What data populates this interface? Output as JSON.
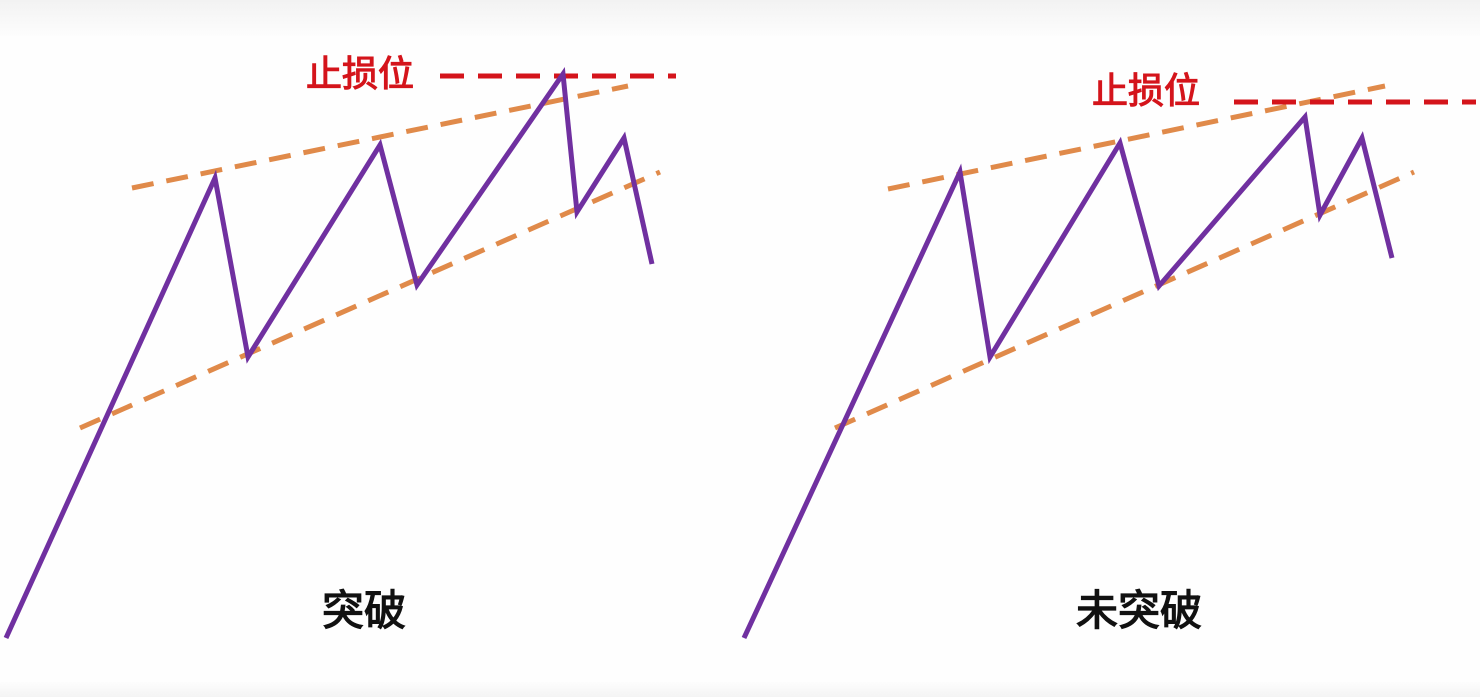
{
  "colors": {
    "price_line": "#7030a0",
    "trend_line": "#e08a4a",
    "stop_line": "#d4141b",
    "caption_text": "#111111"
  },
  "panels": [
    {
      "stop_label": "止损位",
      "caption": "突破"
    },
    {
      "stop_label": "止损位",
      "caption": "未突破"
    }
  ]
}
